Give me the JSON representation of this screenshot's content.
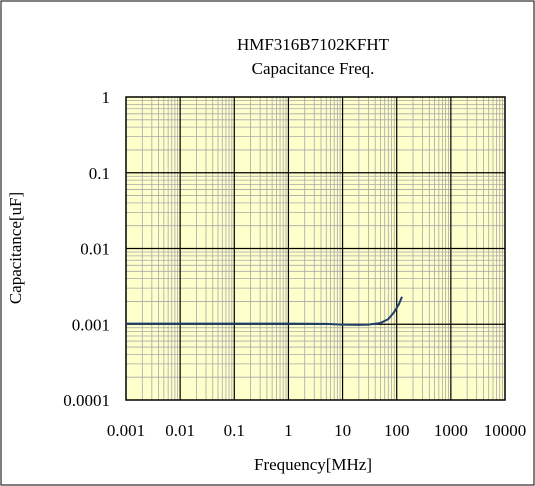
{
  "chart_data": {
    "type": "line",
    "title": "HMF316B7102KFHT",
    "subtitle": "Capacitance Freq.",
    "xlabel": "Frequency[MHz]",
    "ylabel": "Capacitance[uF]",
    "x_scale": "log",
    "y_scale": "log",
    "xlim": [
      0.001,
      10000
    ],
    "ylim": [
      0.0001,
      1
    ],
    "x_ticks": [
      "0.001",
      "0.01",
      "0.1",
      "1",
      "10",
      "100",
      "1000",
      "10000"
    ],
    "y_ticks": [
      "0.0001",
      "0.001",
      "0.01",
      "0.1",
      "1"
    ],
    "grid": true,
    "legend": "none",
    "series": [
      {
        "points": [
          {
            "x": 0.001,
            "y": 0.00102
          },
          {
            "x": 0.01,
            "y": 0.00102
          },
          {
            "x": 0.1,
            "y": 0.00102
          },
          {
            "x": 1,
            "y": 0.00102
          },
          {
            "x": 5,
            "y": 0.00101
          },
          {
            "x": 10,
            "y": 0.00099
          },
          {
            "x": 20,
            "y": 0.00098
          },
          {
            "x": 30,
            "y": 0.00099
          },
          {
            "x": 50,
            "y": 0.00104
          },
          {
            "x": 70,
            "y": 0.00117
          },
          {
            "x": 90,
            "y": 0.00145
          },
          {
            "x": 110,
            "y": 0.00185
          },
          {
            "x": 125,
            "y": 0.0023
          }
        ]
      }
    ],
    "colors": {
      "plot_background": "#FFFFCC",
      "minor_grid": "#A8A8A8",
      "major_grid": "#000000",
      "line": "#1F3F6A"
    }
  }
}
